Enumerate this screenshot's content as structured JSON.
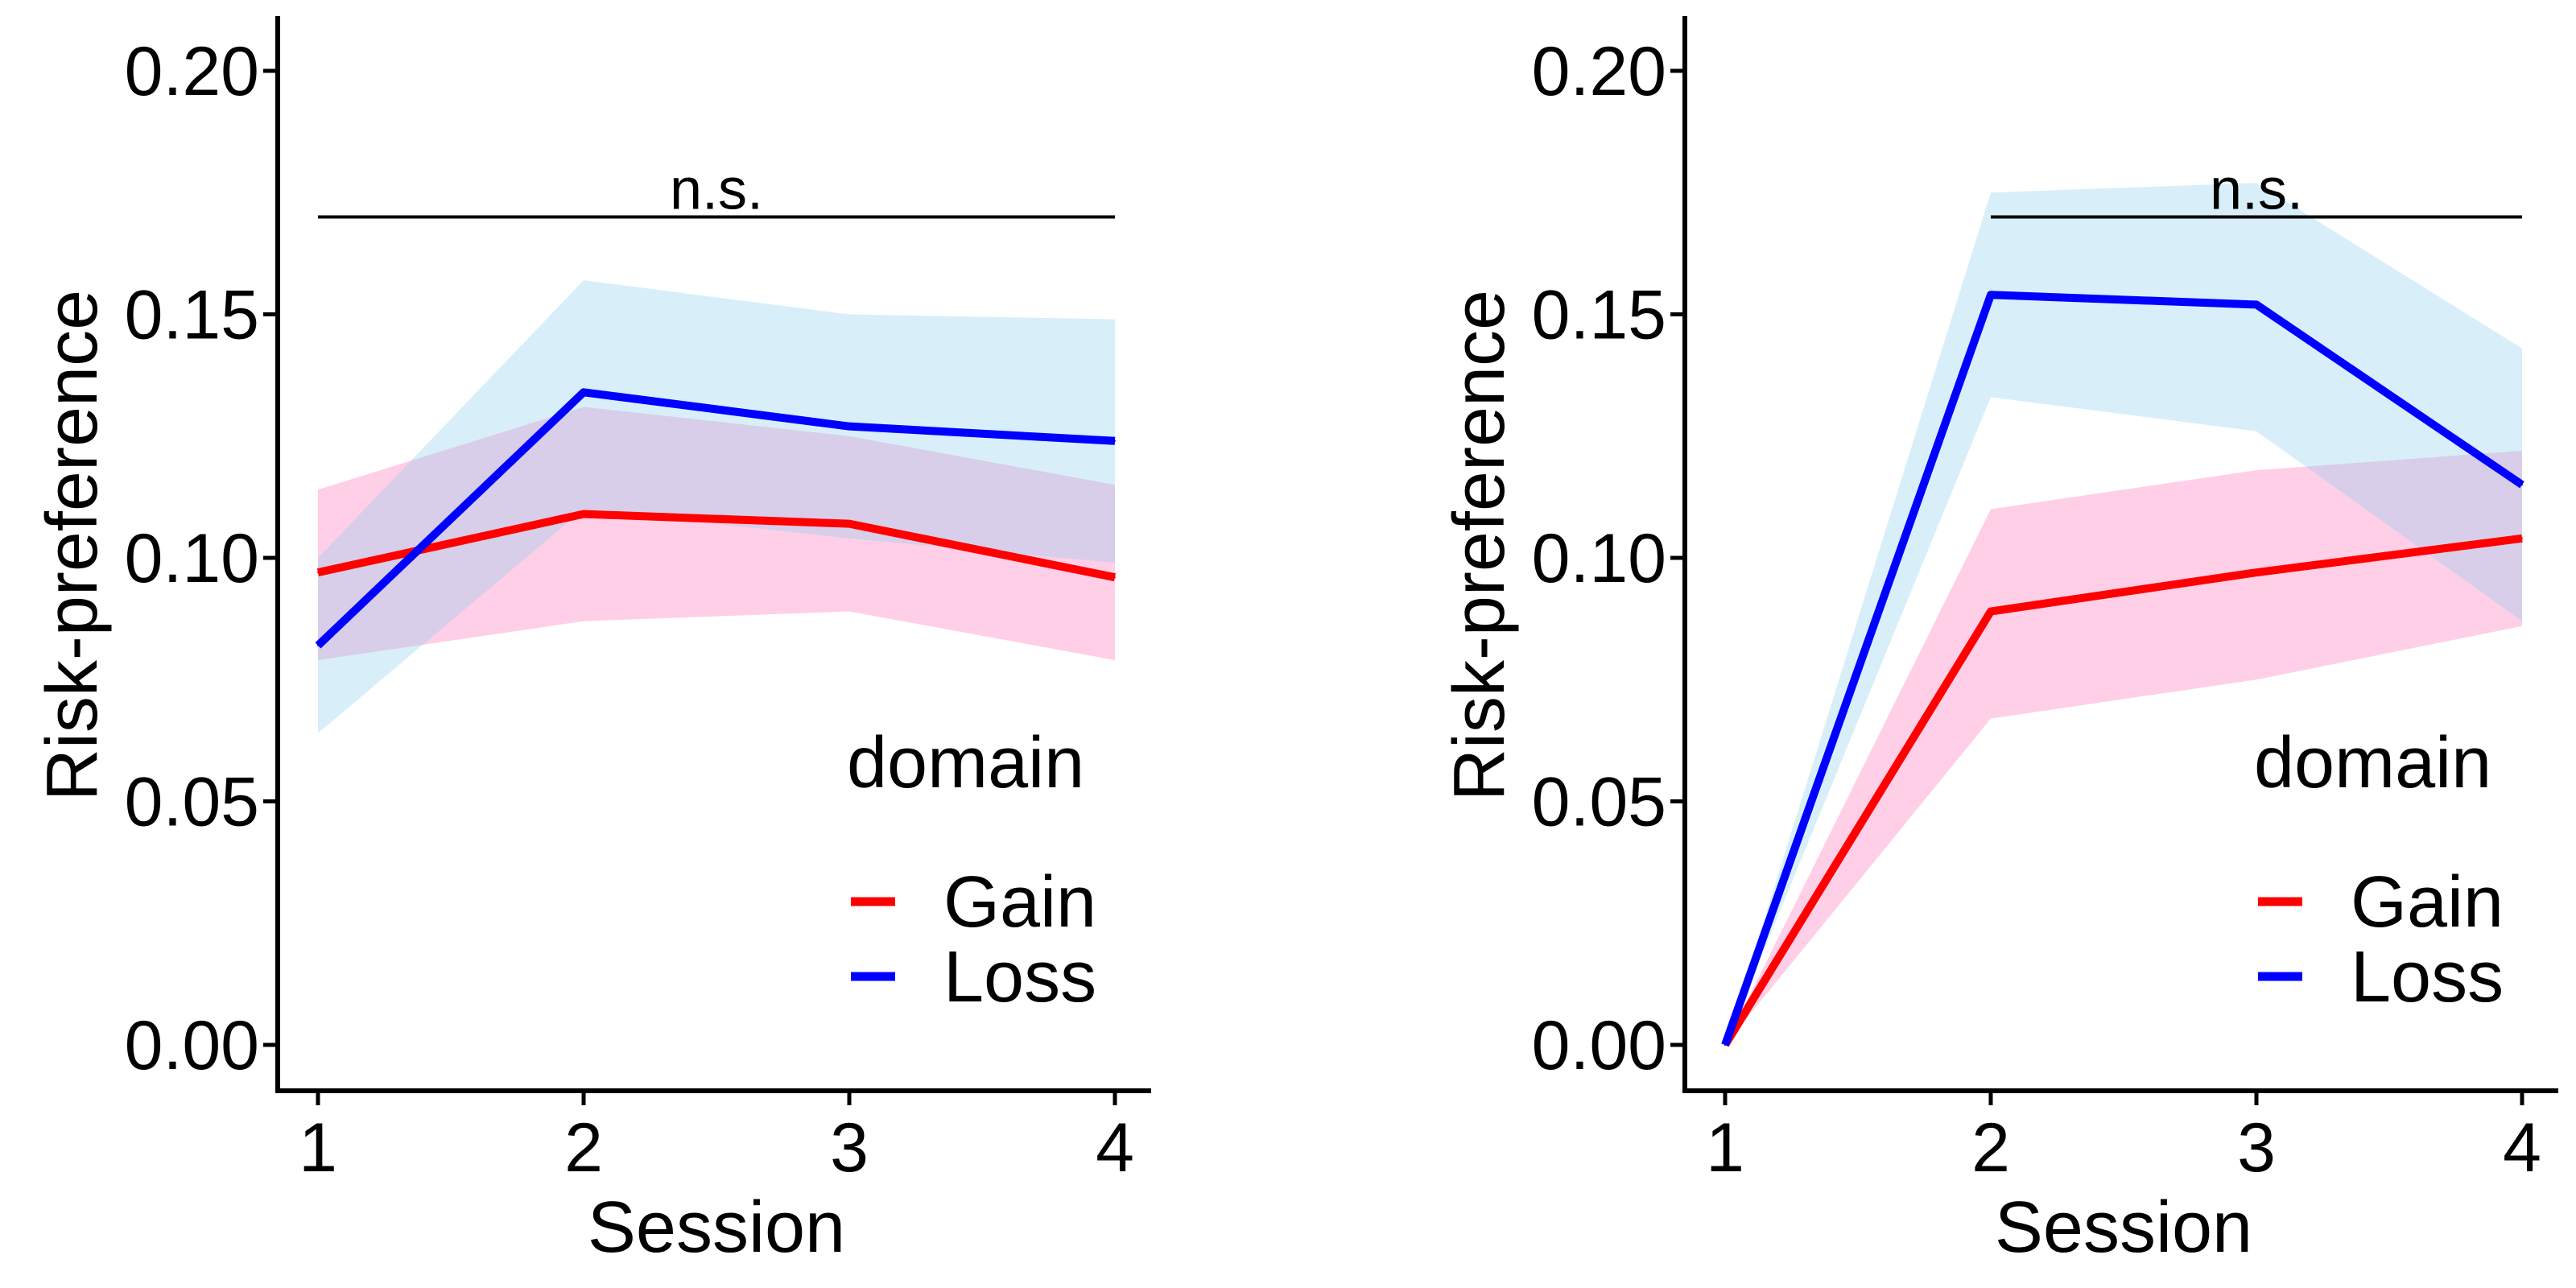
{
  "chart_data": [
    {
      "type": "line",
      "x": [
        1,
        2,
        3,
        4
      ],
      "xlabel": "Session",
      "ylabel": "Risk-preference",
      "xticks": [
        "1",
        "2",
        "3",
        "4"
      ],
      "yticks": [
        "0.00",
        "0.05",
        "0.10",
        "0.15",
        "0.20"
      ],
      "ylim": [
        0,
        0.2
      ],
      "grid": false,
      "legend_title": "domain",
      "legend_position": "bottom-right",
      "annotation": {
        "text": "n.s.",
        "y": 0.17,
        "x_from": 1,
        "x_to": 4
      },
      "series": [
        {
          "name": "Gain",
          "color": "#ff0000",
          "band_color": "#ff69b4",
          "values": [
            0.097,
            0.109,
            0.107,
            0.096
          ],
          "lower": [
            0.079,
            0.087,
            0.089,
            0.079
          ],
          "upper": [
            0.114,
            0.131,
            0.125,
            0.115
          ]
        },
        {
          "name": "Loss",
          "color": "#0000ff",
          "band_color": "#87ceeb",
          "values": [
            0.082,
            0.134,
            0.127,
            0.124
          ],
          "lower": [
            0.064,
            0.11,
            0.104,
            0.099
          ],
          "upper": [
            0.1,
            0.157,
            0.15,
            0.149
          ]
        }
      ]
    },
    {
      "type": "line",
      "x": [
        1,
        2,
        3,
        4
      ],
      "xlabel": "Session",
      "ylabel": "Risk-preference",
      "xticks": [
        "1",
        "2",
        "3",
        "4"
      ],
      "yticks": [
        "0.00",
        "0.05",
        "0.10",
        "0.15",
        "0.20"
      ],
      "ylim": [
        0,
        0.2
      ],
      "grid": false,
      "legend_title": "domain",
      "legend_position": "bottom-right",
      "annotation": {
        "text": "n.s.",
        "y": 0.17,
        "x_from": 2,
        "x_to": 4
      },
      "series": [
        {
          "name": "Gain",
          "color": "#ff0000",
          "band_color": "#ff69b4",
          "values": [
            0.0,
            0.089,
            0.097,
            0.104
          ],
          "lower": [
            0.0,
            0.067,
            0.075,
            0.086
          ],
          "upper": [
            0.0,
            0.11,
            0.118,
            0.122
          ]
        },
        {
          "name": "Loss",
          "color": "#0000ff",
          "band_color": "#87ceeb",
          "values": [
            0.0,
            0.154,
            0.152,
            0.115
          ],
          "lower": [
            0.0,
            0.133,
            0.126,
            0.087
          ],
          "upper": [
            0.0,
            0.175,
            0.177,
            0.143
          ]
        }
      ]
    }
  ]
}
